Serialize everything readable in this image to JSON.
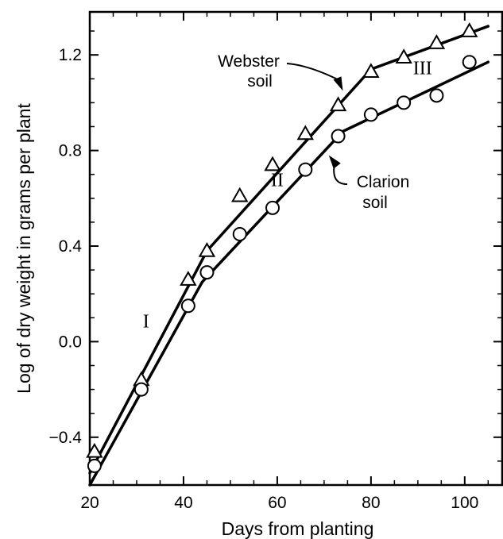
{
  "chart_data": {
    "type": "line",
    "title": "",
    "xlabel": "Days from planting",
    "ylabel": "Log of dry weight in grams per plant",
    "xlim": [
      20,
      108
    ],
    "ylim": [
      -0.6,
      1.38
    ],
    "x_ticks": [
      20,
      40,
      60,
      80,
      100
    ],
    "x_tick_labels": [
      "20",
      "40",
      "60",
      "80",
      "100"
    ],
    "y_ticks": [
      -0.4,
      0.0,
      0.4,
      0.8,
      1.2
    ],
    "y_tick_labels": [
      "−0.4",
      "0.0",
      "0.4",
      "0.8",
      "1.2"
    ],
    "grid": false,
    "series": [
      {
        "name": "Webster soil",
        "marker": "triangle",
        "points": [
          {
            "x": 21,
            "y": -0.46
          },
          {
            "x": 31,
            "y": -0.16
          },
          {
            "x": 41,
            "y": 0.26
          },
          {
            "x": 45,
            "y": 0.38
          },
          {
            "x": 52,
            "y": 0.61
          },
          {
            "x": 59,
            "y": 0.74
          },
          {
            "x": 66,
            "y": 0.87
          },
          {
            "x": 73,
            "y": 0.99
          },
          {
            "x": 80,
            "y": 1.13
          },
          {
            "x": 87,
            "y": 1.19
          },
          {
            "x": 94,
            "y": 1.25
          },
          {
            "x": 101,
            "y": 1.3
          }
        ],
        "fit_lines": [
          {
            "x": [
              20,
              45
            ],
            "y": [
              -0.55,
              0.38
            ]
          },
          {
            "x": [
              45,
              80
            ],
            "y": [
              0.38,
              1.14
            ]
          },
          {
            "x": [
              80,
              105
            ],
            "y": [
              1.14,
              1.32
            ]
          }
        ]
      },
      {
        "name": "Clarion soil",
        "marker": "circle",
        "points": [
          {
            "x": 21,
            "y": -0.52
          },
          {
            "x": 31,
            "y": -0.2
          },
          {
            "x": 41,
            "y": 0.15
          },
          {
            "x": 45,
            "y": 0.29
          },
          {
            "x": 52,
            "y": 0.45
          },
          {
            "x": 59,
            "y": 0.56
          },
          {
            "x": 66,
            "y": 0.72
          },
          {
            "x": 73,
            "y": 0.86
          },
          {
            "x": 80,
            "y": 0.95
          },
          {
            "x": 87,
            "y": 1.0
          },
          {
            "x": 94,
            "y": 1.03
          },
          {
            "x": 101,
            "y": 1.17
          }
        ],
        "fit_lines": [
          {
            "x": [
              20,
              44
            ],
            "y": [
              -0.6,
              0.25
            ]
          },
          {
            "x": [
              44,
              74
            ],
            "y": [
              0.25,
              0.88
            ]
          },
          {
            "x": [
              74,
              105
            ],
            "y": [
              0.88,
              1.17
            ]
          }
        ]
      }
    ],
    "annotations": [
      {
        "lines": [
          "Webster",
          "soil"
        ],
        "arrow_to": {
          "x": 74,
          "y": 1.05
        }
      },
      {
        "lines": [
          "Clarion",
          "soil"
        ],
        "arrow_to": {
          "x": 71,
          "y": 0.78
        }
      },
      {
        "text": "I",
        "x": 32,
        "y": 0.06
      },
      {
        "text": "II",
        "x": 60,
        "y": 0.65
      },
      {
        "text": "III",
        "x": 91,
        "y": 1.12
      }
    ]
  }
}
